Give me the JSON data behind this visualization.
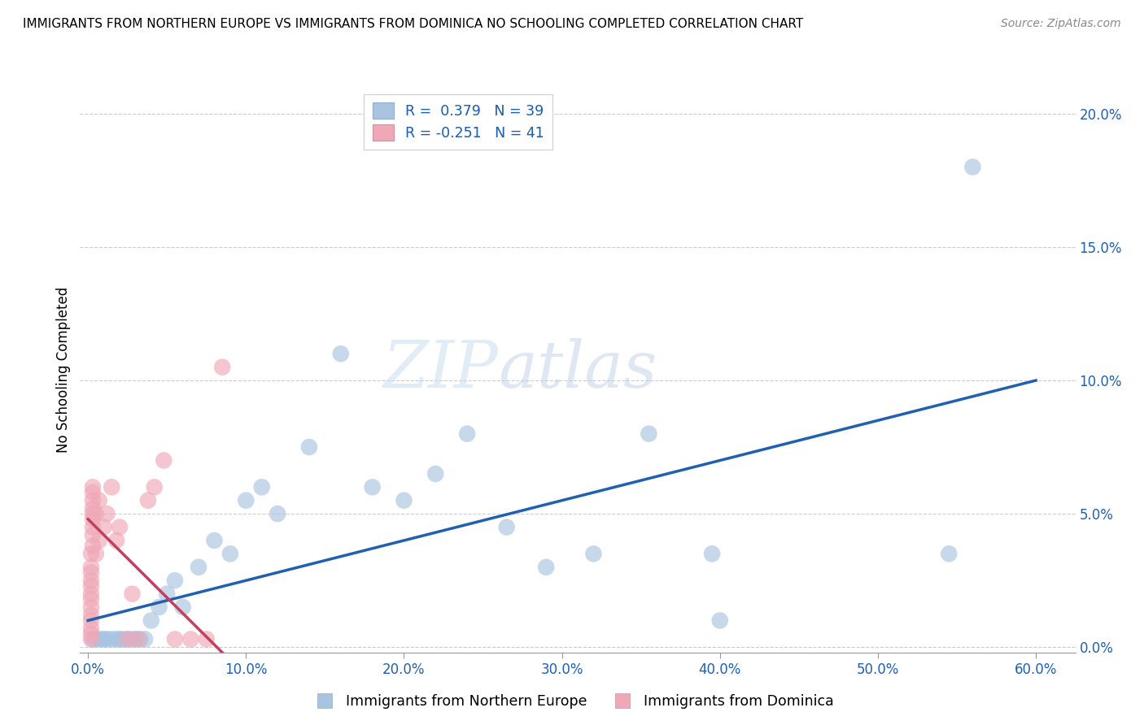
{
  "title": "IMMIGRANTS FROM NORTHERN EUROPE VS IMMIGRANTS FROM DOMINICA NO SCHOOLING COMPLETED CORRELATION CHART",
  "source": "Source: ZipAtlas.com",
  "ylabel": "No Schooling Completed",
  "xlabel_ticks": [
    "0.0%",
    "10.0%",
    "20.0%",
    "30.0%",
    "40.0%",
    "50.0%",
    "60.0%"
  ],
  "xlabel_vals": [
    0.0,
    0.1,
    0.2,
    0.3,
    0.4,
    0.5,
    0.6
  ],
  "ylabel_ticks": [
    "0.0%",
    "5.0%",
    "10.0%",
    "15.0%",
    "20.0%"
  ],
  "ylabel_vals": [
    0.0,
    0.05,
    0.1,
    0.15,
    0.2
  ],
  "xlim": [
    -0.005,
    0.625
  ],
  "ylim": [
    -0.002,
    0.21
  ],
  "blue_color": "#a8c4e0",
  "pink_color": "#f0a8b8",
  "blue_line_color": "#2060b0",
  "pink_line_color": "#c04060",
  "legend_blue_label": "R =  0.379   N = 39",
  "legend_pink_label": "R = -0.251   N = 41",
  "watermark_zip": "ZIP",
  "watermark_atlas": "atlas",
  "blue_scatter_x": [
    0.003,
    0.005,
    0.008,
    0.01,
    0.012,
    0.015,
    0.018,
    0.02,
    0.022,
    0.025,
    0.028,
    0.03,
    0.033,
    0.036,
    0.04,
    0.045,
    0.05,
    0.055,
    0.06,
    0.07,
    0.08,
    0.09,
    0.1,
    0.11,
    0.12,
    0.14,
    0.16,
    0.18,
    0.2,
    0.22,
    0.24,
    0.265,
    0.29,
    0.32,
    0.355,
    0.395,
    0.545,
    0.56,
    0.4
  ],
  "blue_scatter_y": [
    0.003,
    0.003,
    0.003,
    0.003,
    0.003,
    0.003,
    0.003,
    0.003,
    0.003,
    0.003,
    0.003,
    0.003,
    0.003,
    0.003,
    0.01,
    0.015,
    0.02,
    0.025,
    0.015,
    0.03,
    0.04,
    0.035,
    0.055,
    0.06,
    0.05,
    0.075,
    0.11,
    0.06,
    0.055,
    0.065,
    0.08,
    0.045,
    0.03,
    0.035,
    0.08,
    0.035,
    0.035,
    0.18,
    0.01
  ],
  "pink_scatter_x": [
    0.002,
    0.002,
    0.002,
    0.002,
    0.002,
    0.002,
    0.002,
    0.002,
    0.002,
    0.002,
    0.002,
    0.002,
    0.002,
    0.003,
    0.003,
    0.003,
    0.003,
    0.003,
    0.003,
    0.003,
    0.003,
    0.003,
    0.005,
    0.005,
    0.007,
    0.007,
    0.01,
    0.012,
    0.015,
    0.018,
    0.02,
    0.025,
    0.028,
    0.032,
    0.038,
    0.042,
    0.048,
    0.055,
    0.065,
    0.075,
    0.085
  ],
  "pink_scatter_y": [
    0.003,
    0.005,
    0.007,
    0.01,
    0.012,
    0.015,
    0.018,
    0.02,
    0.023,
    0.025,
    0.028,
    0.03,
    0.035,
    0.038,
    0.042,
    0.045,
    0.048,
    0.05,
    0.052,
    0.055,
    0.058,
    0.06,
    0.035,
    0.05,
    0.04,
    0.055,
    0.045,
    0.05,
    0.06,
    0.04,
    0.045,
    0.003,
    0.02,
    0.003,
    0.055,
    0.06,
    0.07,
    0.003,
    0.003,
    0.003,
    0.105
  ],
  "blue_line_x": [
    0.0,
    0.6
  ],
  "blue_line_y": [
    0.01,
    0.1
  ],
  "pink_line_x": [
    0.0,
    0.085
  ],
  "pink_line_y": [
    0.048,
    -0.002
  ]
}
